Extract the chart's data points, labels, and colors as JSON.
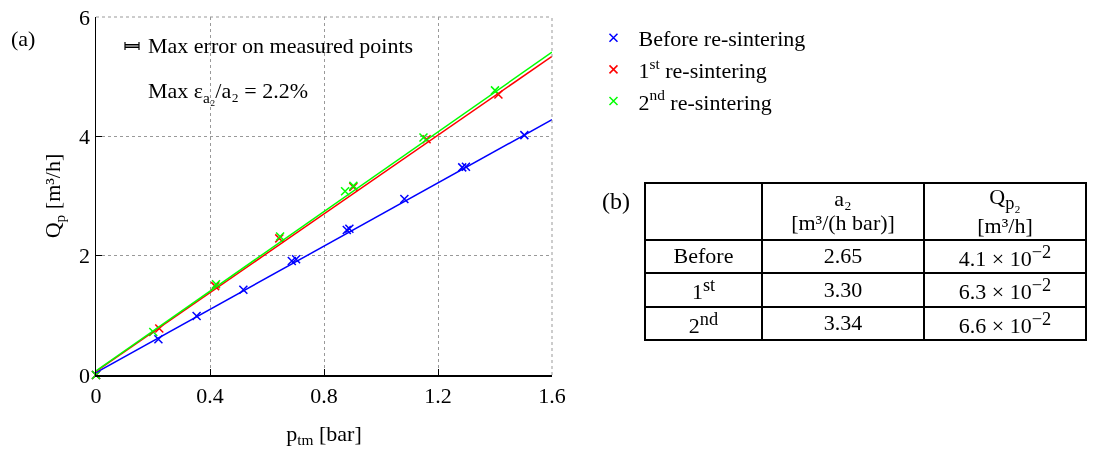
{
  "chart_data": [
    {
      "type": "scatter",
      "xlabel": "p$_{tm}$ [bar]",
      "ylabel": "Q$_{p}$ [m³/h]",
      "annotations": [
        "(a)",
        "Max error on measured points",
        "Max ε$_{a₂}$/a₂ = 2.2%"
      ],
      "xlim": [
        0,
        1.6
      ],
      "xticks": [
        0,
        0.4,
        0.8,
        1.2,
        1.6
      ],
      "ylim": [
        0,
        6
      ],
      "yticks": [
        0,
        2,
        4,
        6
      ],
      "grid": true,
      "legend": "top right",
      "marker": "cross",
      "series": [
        {
          "type": "scatter",
          "name": "Before re-sintering",
          "color": "#0000ff",
          "x": [
            0,
            0.219,
            0.353,
            0.517,
            0.687,
            0.702,
            0.88,
            0.889,
            1.082,
            1.285,
            1.298,
            1.503
          ],
          "values": [
            0,
            0.6,
            0.99,
            1.43,
            1.91,
            1.94,
            2.43,
            2.45,
            2.95,
            3.48,
            3.49,
            4.02
          ]
        },
        {
          "type": "scatter",
          "name": "1$^{st}$ re-sintering",
          "color": "#ff0000",
          "x": [
            0,
            0.222,
            0.418,
            0.643,
            0.903,
            1.16,
            1.412
          ],
          "values": [
            0,
            0.78,
            1.49,
            2.29,
            3.15,
            3.95,
            4.7
          ]
        },
        {
          "type": "scatter",
          "name": "2$^{nd}$ re-sintering",
          "color": "#00ff00",
          "x": [
            0,
            0.201,
            0.421,
            0.646,
            0.874,
            0.903,
            1.149,
            1.4
          ],
          "values": [
            0,
            0.72,
            1.52,
            2.32,
            3.08,
            3.17,
            3.98,
            4.77
          ]
        },
        {
          "type": "line",
          "color": "#0000ff",
          "x": [
            0,
            1.6
          ],
          "values": [
            0.04,
            4.28
          ],
          "line_style": "solid",
          "marker": "none"
        },
        {
          "type": "line",
          "color": "#ff0000",
          "x": [
            0,
            1.6
          ],
          "values": [
            0.06,
            5.34
          ],
          "line_style": "solid",
          "marker": "none"
        },
        {
          "type": "line",
          "color": "#00ff00",
          "x": [
            0,
            1.6
          ],
          "values": [
            0.07,
            5.41
          ],
          "line_style": "solid",
          "marker": "none"
        }
      ]
    },
    {
      "type": "other",
      "title": "(b)",
      "categories": [
        null,
        "a₂\n[m³/(h bar)]",
        "Q$_{p₂}$\n[m³/h]"
      ],
      "y_categories": [
        "Before",
        "1$^{st}$",
        "2$^{nd}$"
      ],
      "cell_labels": [
        [
          "2.65",
          "4.1 × 10$^{−2}$"
        ],
        [
          "3.30",
          "6.3 × 10$^{−2}$"
        ],
        [
          "3.34",
          "6.6 × 10$^{−2}$"
        ]
      ]
    }
  ]
}
